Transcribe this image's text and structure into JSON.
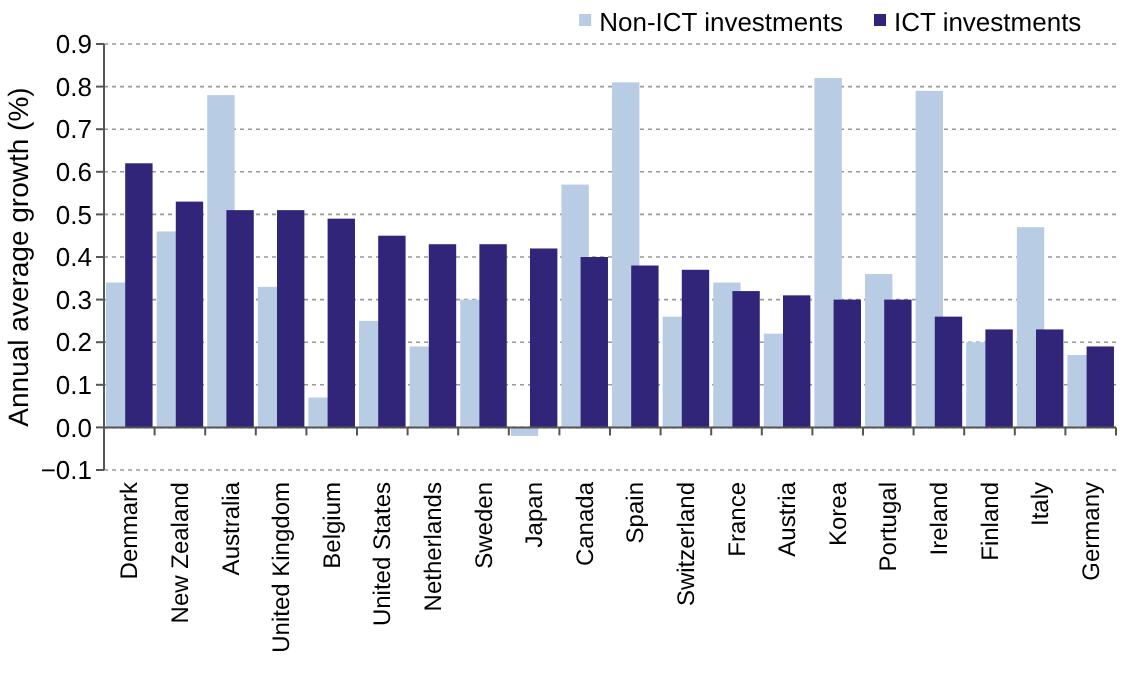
{
  "chart_data": {
    "type": "bar",
    "ylabel": "Annual average growth (%)",
    "categories": [
      "Denmark",
      "New Zealand",
      "Australia",
      "United Kingdom",
      "Belgium",
      "United States",
      "Netherlands",
      "Sweden",
      "Japan",
      "Canada",
      "Spain",
      "Switzerland",
      "France",
      "Austria",
      "Korea",
      "Portugal",
      "Ireland",
      "Finland",
      "Italy",
      "Germany"
    ],
    "series": [
      {
        "name": "Non-ICT investments",
        "color": "#b8cce4",
        "values": [
          0.34,
          0.46,
          0.78,
          0.33,
          0.07,
          0.25,
          0.19,
          0.3,
          -0.02,
          0.57,
          0.81,
          0.26,
          0.34,
          0.22,
          0.82,
          0.36,
          0.79,
          0.2,
          0.47,
          0.17
        ]
      },
      {
        "name": "ICT investments",
        "color": "#312579",
        "values": [
          0.62,
          0.53,
          0.51,
          0.51,
          0.49,
          0.45,
          0.43,
          0.43,
          0.42,
          0.4,
          0.38,
          0.37,
          0.32,
          0.31,
          0.3,
          0.3,
          0.26,
          0.23,
          0.23,
          0.19
        ]
      }
    ],
    "ylim": [
      -0.1,
      0.9
    ],
    "yticks": [
      {
        "value": -0.1,
        "label": "−0.1"
      },
      {
        "value": 0,
        "label": "0.0"
      },
      {
        "value": 0.1,
        "label": "0.1"
      },
      {
        "value": 0.2,
        "label": "0.2"
      },
      {
        "value": 0.3,
        "label": "0.3"
      },
      {
        "value": 0.4,
        "label": "0.4"
      },
      {
        "value": 0.5,
        "label": "0.5"
      },
      {
        "value": 0.6,
        "label": "0.6"
      },
      {
        "value": 0.7,
        "label": "0.7"
      },
      {
        "value": 0.8,
        "label": "0.8"
      },
      {
        "value": 0.9,
        "label": "0.9"
      }
    ],
    "grid": "y",
    "legend": "top right"
  }
}
